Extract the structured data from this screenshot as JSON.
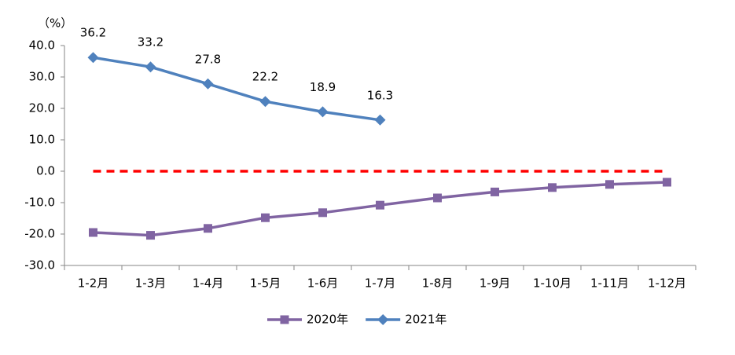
{
  "chart_data": {
    "type": "line",
    "y_label": "（%）",
    "categories": [
      "1-2月",
      "1-3月",
      "1-4月",
      "1-5月",
      "1-6月",
      "1-7月",
      "1-8月",
      "1-9月",
      "1-10月",
      "1-11月",
      "1-12月"
    ],
    "series": [
      {
        "name": "2020年",
        "color": "#8064a2",
        "marker": "square",
        "values": [
          -19.5,
          -20.4,
          -18.2,
          -14.8,
          -13.2,
          -10.8,
          -8.5,
          -6.6,
          -5.2,
          -4.2,
          -3.5
        ]
      },
      {
        "name": "2021年",
        "color": "#4f81bd",
        "marker": "diamond",
        "values": [
          36.2,
          33.2,
          27.8,
          22.2,
          18.9,
          16.3,
          null,
          null,
          null,
          null,
          null
        ],
        "data_labels": true
      }
    ],
    "reference_line": {
      "value": 0,
      "color": "#ff0000",
      "style": "dashed"
    },
    "ylim": [
      -30,
      40
    ],
    "yticks": [
      {
        "value": -30,
        "label": "-30.0"
      },
      {
        "value": -20,
        "label": "-20.0"
      },
      {
        "value": -10,
        "label": "-10.0"
      },
      {
        "value": 0,
        "label": "0.0"
      },
      {
        "value": 10,
        "label": "10.0"
      },
      {
        "value": 20,
        "label": "20.0"
      },
      {
        "value": 30,
        "label": "30.0"
      },
      {
        "value": 40,
        "label": "40.0"
      }
    ],
    "grid": false,
    "legend": "bottom"
  }
}
